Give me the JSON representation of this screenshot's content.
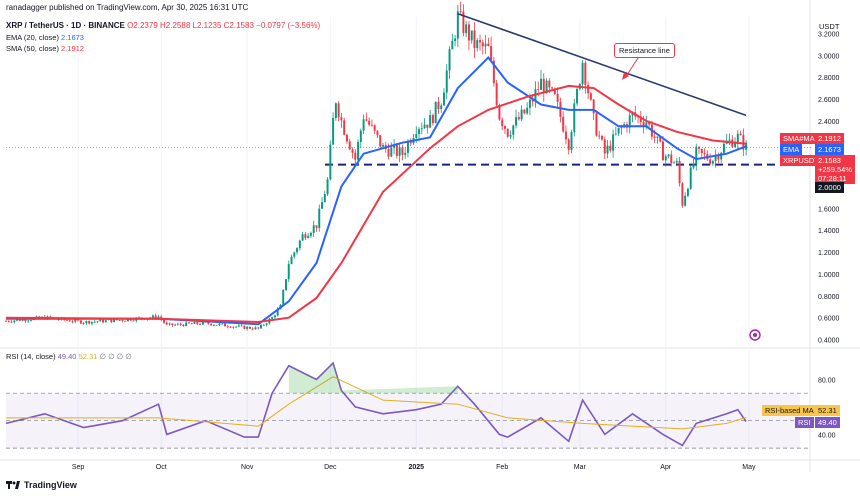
{
  "header": {
    "published": "ranadagger published on TradingView.com, Apr 30, 2025 16:31 UTC"
  },
  "legend": {
    "symbol": "XRP / TetherUS · 1D · BINANCE",
    "o": "O2.2379",
    "h": "H2.2588",
    "l": "L2.1235",
    "c": "C2.1583",
    "chg": "−0.0797 (−3.56%)",
    "ema_label": "EMA (20, close)",
    "ema_value": "2.1673",
    "sma_label": "SMA (50, close)",
    "sma_value": "2.1912",
    "rsi_label": "RSI (14, close)",
    "rsi_value": "49.40",
    "rsi_ma_value": "52.31",
    "rsi_extra": "∅ ∅ ∅ ∅"
  },
  "price_axis": {
    "currency": "USDT",
    "ticks": [
      "3.2000",
      "3.0000",
      "2.8000",
      "2.6000",
      "2.4000",
      "2.2000",
      "2.0000",
      "1.8000",
      "1.6000",
      "1.4000",
      "1.2000",
      "1.0000",
      "0.8000",
      "0.6000",
      "0.4000"
    ],
    "tags": {
      "sma_name": "SMA#MA",
      "sma_val": "2.1912",
      "ema_name": "EMA",
      "ema_val": "2.1673",
      "xrp_name": "XRPUSDT",
      "xrp_val": "2.1583",
      "xrp_chg": "+259.54%",
      "xrp_timer": "07:28:11",
      "support_val": "2.0000"
    }
  },
  "rsi_axis": {
    "ticks": [
      "80.00",
      "40.00"
    ],
    "tag_ma_name": "RSI-based MA",
    "tag_ma_val": "52.31",
    "tag_rsi_name": "RSI",
    "tag_rsi_val": "49.40"
  },
  "time_axis": {
    "ticks": [
      "Sep",
      "Oct",
      "Nov",
      "Dec",
      "2025",
      "Feb",
      "Mar",
      "Apr",
      "May"
    ]
  },
  "annotation": "Resistance line",
  "footer": {
    "brand": "TradingView"
  },
  "chart_data": [
    {
      "type": "candlestick",
      "title": "XRP / TetherUS · 1D · BINANCE",
      "ylim": [
        0.35,
        3.35
      ],
      "x_range": [
        "2024-08-06",
        "2025-05-05"
      ],
      "close_path": [
        [
          "2024-08-06",
          0.57
        ],
        [
          "2024-08-20",
          0.6
        ],
        [
          "2024-09-03",
          0.56
        ],
        [
          "2024-09-17",
          0.58
        ],
        [
          "2024-09-30",
          0.61
        ],
        [
          "2024-10-03",
          0.53
        ],
        [
          "2024-10-17",
          0.55
        ],
        [
          "2024-10-31",
          0.51
        ],
        [
          "2024-11-05",
          0.5
        ],
        [
          "2024-11-10",
          0.6
        ],
        [
          "2024-11-13",
          0.7
        ],
        [
          "2024-11-16",
          1.1
        ],
        [
          "2024-11-21",
          1.35
        ],
        [
          "2024-11-26",
          1.45
        ],
        [
          "2024-11-30",
          1.85
        ],
        [
          "2024-12-02",
          2.4
        ],
        [
          "2024-12-03",
          2.6
        ],
        [
          "2024-12-05",
          2.4
        ],
        [
          "2024-12-10",
          2.05
        ],
        [
          "2024-12-13",
          2.45
        ],
        [
          "2024-12-20",
          2.15
        ],
        [
          "2024-12-27",
          2.1
        ],
        [
          "2025-01-01",
          2.35
        ],
        [
          "2025-01-06",
          2.4
        ],
        [
          "2025-01-10",
          2.6
        ],
        [
          "2025-01-16",
          3.35
        ],
        [
          "2025-01-22",
          3.1
        ],
        [
          "2025-01-27",
          3.05
        ],
        [
          "2025-01-31",
          2.45
        ],
        [
          "2025-02-03",
          2.3
        ],
        [
          "2025-02-10",
          2.5
        ],
        [
          "2025-02-15",
          2.75
        ],
        [
          "2025-02-20",
          2.6
        ],
        [
          "2025-02-25",
          2.2
        ],
        [
          "2025-03-02",
          2.95
        ],
        [
          "2025-03-06",
          2.4
        ],
        [
          "2025-03-10",
          2.1
        ],
        [
          "2025-03-15",
          2.3
        ],
        [
          "2025-03-20",
          2.45
        ],
        [
          "2025-03-25",
          2.4
        ],
        [
          "2025-03-31",
          2.1
        ],
        [
          "2025-04-05",
          2.0
        ],
        [
          "2025-04-07",
          1.65
        ],
        [
          "2025-04-12",
          2.1
        ],
        [
          "2025-04-18",
          2.05
        ],
        [
          "2025-04-23",
          2.2
        ],
        [
          "2025-04-27",
          2.25
        ],
        [
          "2025-04-30",
          2.1583
        ]
      ],
      "series": [
        {
          "name": "EMA (20, close)",
          "color": "#2962ff",
          "values": [
            [
              "2024-08-06",
              0.59
            ],
            [
              "2024-09-30",
              0.59
            ],
            [
              "2024-11-05",
              0.54
            ],
            [
              "2024-11-16",
              0.75
            ],
            [
              "2024-11-26",
              1.1
            ],
            [
              "2024-12-05",
              1.8
            ],
            [
              "2024-12-13",
              2.1
            ],
            [
              "2024-12-27",
              2.2
            ],
            [
              "2025-01-06",
              2.25
            ],
            [
              "2025-01-16",
              2.7
            ],
            [
              "2025-01-27",
              2.98
            ],
            [
              "2025-02-03",
              2.75
            ],
            [
              "2025-02-15",
              2.55
            ],
            [
              "2025-02-25",
              2.5
            ],
            [
              "2025-03-06",
              2.5
            ],
            [
              "2025-03-15",
              2.35
            ],
            [
              "2025-03-25",
              2.35
            ],
            [
              "2025-04-05",
              2.15
            ],
            [
              "2025-04-12",
              2.05
            ],
            [
              "2025-04-23",
              2.1
            ],
            [
              "2025-04-30",
              2.1673
            ]
          ]
        },
        {
          "name": "SMA (50, close)",
          "color": "#f23645",
          "values": [
            [
              "2024-08-06",
              0.6
            ],
            [
              "2024-09-30",
              0.59
            ],
            [
              "2024-11-05",
              0.56
            ],
            [
              "2024-11-16",
              0.6
            ],
            [
              "2024-11-26",
              0.78
            ],
            [
              "2024-12-05",
              1.1
            ],
            [
              "2024-12-20",
              1.75
            ],
            [
              "2025-01-06",
              2.15
            ],
            [
              "2025-01-16",
              2.35
            ],
            [
              "2025-01-27",
              2.5
            ],
            [
              "2025-02-10",
              2.62
            ],
            [
              "2025-02-25",
              2.72
            ],
            [
              "2025-03-06",
              2.7
            ],
            [
              "2025-03-15",
              2.55
            ],
            [
              "2025-03-25",
              2.4
            ],
            [
              "2025-04-05",
              2.3
            ],
            [
              "2025-04-18",
              2.22
            ],
            [
              "2025-04-30",
              2.1912
            ]
          ]
        }
      ],
      "lines": [
        {
          "name": "Resistance line",
          "kind": "trendline",
          "points": [
            [
              "2025-01-16",
              3.38
            ],
            [
              "2025-04-30",
              2.45
            ]
          ],
          "color": "#2a3a70"
        },
        {
          "name": "support",
          "kind": "horizontal",
          "value": 2.0,
          "color": "#1a237e",
          "dashed": true
        }
      ]
    },
    {
      "type": "line",
      "title": "RSI (14, close)",
      "ylim": [
        25,
        100
      ],
      "bands": {
        "upper": 70,
        "lower": 30
      },
      "series": [
        {
          "name": "RSI",
          "color": "#7e57c2",
          "values": [
            [
              "2024-08-06",
              48
            ],
            [
              "2024-08-20",
              55
            ],
            [
              "2024-09-03",
              45
            ],
            [
              "2024-09-17",
              50
            ],
            [
              "2024-09-30",
              62
            ],
            [
              "2024-10-03",
              40
            ],
            [
              "2024-10-17",
              50
            ],
            [
              "2024-10-31",
              38
            ],
            [
              "2024-11-05",
              38
            ],
            [
              "2024-11-10",
              70
            ],
            [
              "2024-11-16",
              90
            ],
            [
              "2024-11-21",
              85
            ],
            [
              "2024-11-26",
              80
            ],
            [
              "2024-12-02",
              92
            ],
            [
              "2024-12-05",
              72
            ],
            [
              "2024-12-10",
              60
            ],
            [
              "2024-12-20",
              55
            ],
            [
              "2025-01-01",
              58
            ],
            [
              "2025-01-10",
              62
            ],
            [
              "2025-01-16",
              75
            ],
            [
              "2025-01-22",
              62
            ],
            [
              "2025-01-31",
              40
            ],
            [
              "2025-02-03",
              38
            ],
            [
              "2025-02-15",
              52
            ],
            [
              "2025-02-25",
              35
            ],
            [
              "2025-03-02",
              65
            ],
            [
              "2025-03-10",
              40
            ],
            [
              "2025-03-20",
              55
            ],
            [
              "2025-03-31",
              40
            ],
            [
              "2025-04-07",
              32
            ],
            [
              "2025-04-12",
              48
            ],
            [
              "2025-04-23",
              55
            ],
            [
              "2025-04-27",
              58
            ],
            [
              "2025-04-30",
              49.4
            ]
          ]
        },
        {
          "name": "RSI-based MA",
          "color": "#e0b020",
          "values": [
            [
              "2024-08-06",
              52
            ],
            [
              "2024-09-30",
              52
            ],
            [
              "2024-11-05",
              46
            ],
            [
              "2024-11-16",
              62
            ],
            [
              "2024-12-02",
              82
            ],
            [
              "2024-12-20",
              65
            ],
            [
              "2025-01-16",
              62
            ],
            [
              "2025-02-03",
              52
            ],
            [
              "2025-03-02",
              48
            ],
            [
              "2025-04-07",
              44
            ],
            [
              "2025-04-23",
              48
            ],
            [
              "2025-04-30",
              52.31
            ]
          ]
        }
      ]
    }
  ]
}
